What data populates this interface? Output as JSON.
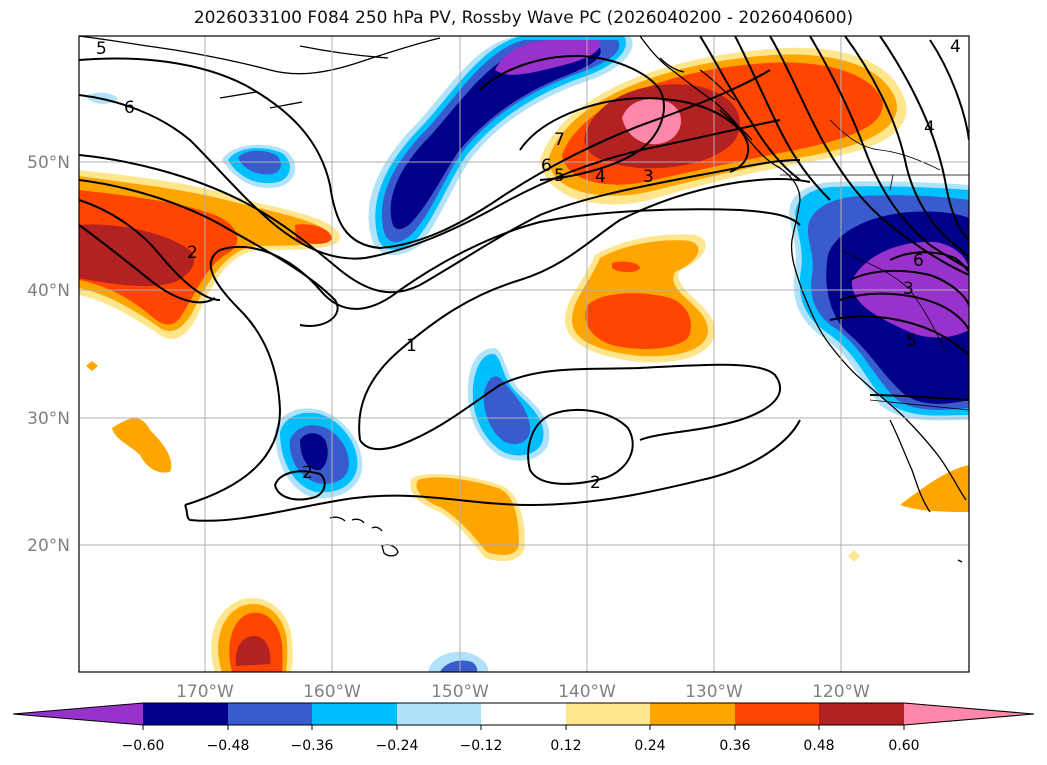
{
  "title": "2026033100 F084 250 hPa PV, Rossby Wave PC (2026040200 - 2026040600)",
  "lat_labels": [
    "50°N",
    "40°N",
    "30°N",
    "20°N"
  ],
  "lon_labels": [
    "170°W",
    "160°W",
    "150°W",
    "140°W",
    "130°W",
    "120°W"
  ],
  "colorbar": {
    "colors": [
      "#9932cc",
      "#00008b",
      "#3a5bcd",
      "#00bfff",
      "#b0e2fa",
      "#ffffff",
      "#ffe68c",
      "#ffa500",
      "#ff4500",
      "#b22222",
      "#ff88aa"
    ],
    "ticks": [
      "−0.60",
      "−0.48",
      "−0.36",
      "−0.24",
      "−0.12",
      "0.12",
      "0.24",
      "0.36",
      "0.48",
      "0.60"
    ]
  },
  "contour_labels": [
    "6",
    "5",
    "7",
    "6",
    "5",
    "4",
    "3",
    "2",
    "1",
    "2",
    "2",
    "4",
    "6",
    "3",
    "4",
    "5"
  ]
}
